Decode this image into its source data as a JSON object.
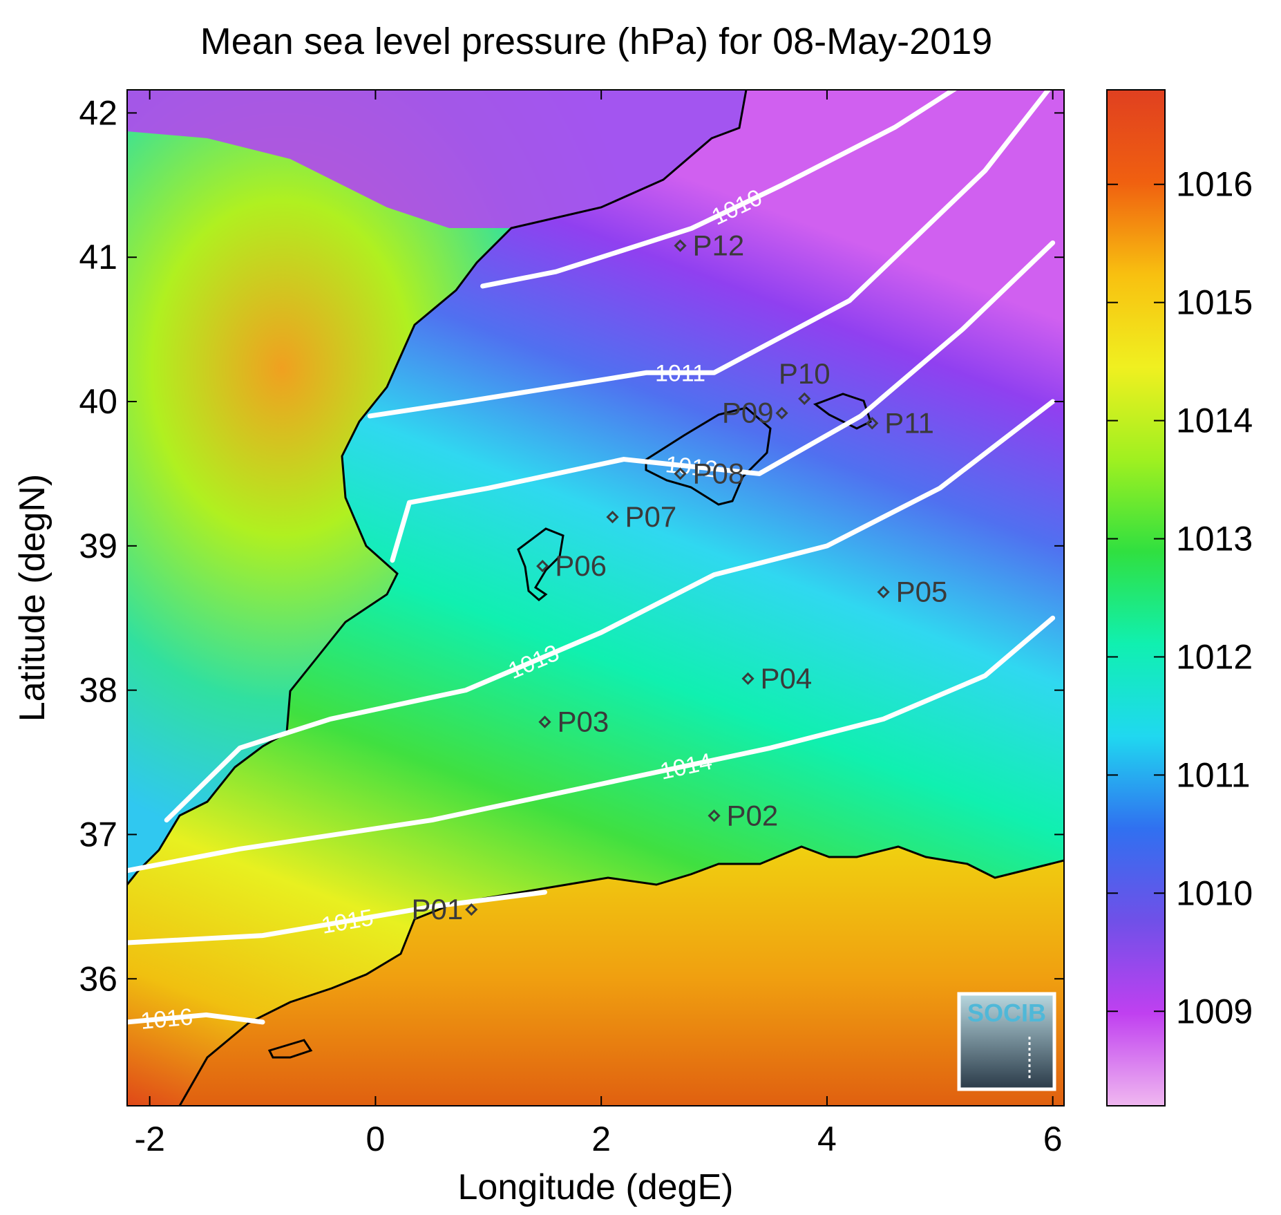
{
  "title": "Mean sea level pressure (hPa) for 08-May-2019",
  "x_axis": {
    "label": "Longitude (degE)",
    "range": [
      -2.2,
      6.1
    ],
    "ticks": [
      -2,
      0,
      2,
      4,
      6
    ],
    "tick_labels": [
      "-2",
      "0",
      "2",
      "4",
      "6"
    ]
  },
  "y_axis": {
    "label": "Latitude (degN)",
    "range": [
      35.12,
      42.16
    ],
    "ticks": [
      36,
      37,
      38,
      39,
      40,
      41,
      42
    ],
    "tick_labels": [
      "36",
      "37",
      "38",
      "39",
      "40",
      "41",
      "42"
    ]
  },
  "colorbar": {
    "range": [
      1008.2,
      1016.8
    ],
    "ticks": [
      1009,
      1010,
      1011,
      1012,
      1013,
      1014,
      1015,
      1016
    ],
    "tick_labels": [
      "1009",
      "1010",
      "1011",
      "1012",
      "1013",
      "1014",
      "1015",
      "1016"
    ],
    "colors": [
      "#f0b8f0",
      "#c040f0",
      "#7050e8",
      "#3070f0",
      "#20d8f0",
      "#10f0b0",
      "#30e040",
      "#a0f020",
      "#f0f020",
      "#f8c010",
      "#f06010",
      "#e04020"
    ]
  },
  "isobars": [
    {
      "label": "1010",
      "points": [
        [
          0.95,
          40.8
        ],
        [
          1.6,
          40.9
        ],
        [
          2.8,
          41.2
        ],
        [
          3.6,
          41.5
        ],
        [
          4.6,
          41.9
        ],
        [
          5.2,
          42.2
        ]
      ]
    },
    {
      "label": "1011",
      "points": [
        [
          -0.05,
          39.9
        ],
        [
          0.8,
          40.0
        ],
        [
          2.4,
          40.2
        ],
        [
          3.0,
          40.2
        ],
        [
          4.2,
          40.7
        ],
        [
          5.4,
          41.6
        ],
        [
          6.0,
          42.2
        ]
      ]
    },
    {
      "label": "1012",
      "points": [
        [
          0.15,
          38.9
        ],
        [
          0.3,
          39.3
        ],
        [
          1.0,
          39.4
        ],
        [
          2.2,
          39.6
        ],
        [
          3.4,
          39.5
        ],
        [
          4.3,
          39.9
        ],
        [
          5.2,
          40.5
        ],
        [
          6.0,
          41.1
        ]
      ]
    },
    {
      "label": "1013",
      "points": [
        [
          -1.85,
          37.1
        ],
        [
          -1.2,
          37.6
        ],
        [
          -0.4,
          37.8
        ],
        [
          0.8,
          38.0
        ],
        [
          2.0,
          38.4
        ],
        [
          3.0,
          38.8
        ],
        [
          4.0,
          39.0
        ],
        [
          5.0,
          39.4
        ],
        [
          6.0,
          40.0
        ]
      ]
    },
    {
      "label": "1014",
      "points": [
        [
          -2.2,
          36.75
        ],
        [
          -1.2,
          36.9
        ],
        [
          0.5,
          37.1
        ],
        [
          2.0,
          37.35
        ],
        [
          3.5,
          37.6
        ],
        [
          4.5,
          37.8
        ],
        [
          5.4,
          38.1
        ],
        [
          6.0,
          38.5
        ]
      ]
    },
    {
      "label": "1015",
      "points": [
        [
          -2.2,
          36.25
        ],
        [
          -1.0,
          36.3
        ],
        [
          0.5,
          36.5
        ],
        [
          1.5,
          36.6
        ]
      ]
    },
    {
      "label": "1016",
      "points": [
        [
          -2.2,
          35.7
        ],
        [
          -1.5,
          35.75
        ],
        [
          -1.0,
          35.7
        ]
      ]
    }
  ],
  "stations": [
    {
      "name": "P01",
      "lon": 0.85,
      "lat": 36.48,
      "label_side": "left"
    },
    {
      "name": "P02",
      "lon": 3.0,
      "lat": 37.13,
      "label_side": "right"
    },
    {
      "name": "P03",
      "lon": 1.5,
      "lat": 37.78,
      "label_side": "right"
    },
    {
      "name": "P04",
      "lon": 3.3,
      "lat": 38.08,
      "label_side": "right"
    },
    {
      "name": "P05",
      "lon": 4.5,
      "lat": 38.68,
      "label_side": "right"
    },
    {
      "name": "P06",
      "lon": 1.48,
      "lat": 38.86,
      "label_side": "right"
    },
    {
      "name": "P07",
      "lon": 2.1,
      "lat": 39.2,
      "label_side": "right"
    },
    {
      "name": "P08",
      "lon": 2.7,
      "lat": 39.5,
      "label_side": "right"
    },
    {
      "name": "P09",
      "lon": 3.6,
      "lat": 39.92,
      "label_side": "left"
    },
    {
      "name": "P10",
      "lon": 3.8,
      "lat": 40.02,
      "label_side": "above"
    },
    {
      "name": "P11",
      "lon": 4.4,
      "lat": 39.85,
      "label_side": "right"
    },
    {
      "name": "P12",
      "lon": 2.7,
      "lat": 41.08,
      "label_side": "right"
    }
  ],
  "logo": {
    "text": "SOCIB"
  }
}
